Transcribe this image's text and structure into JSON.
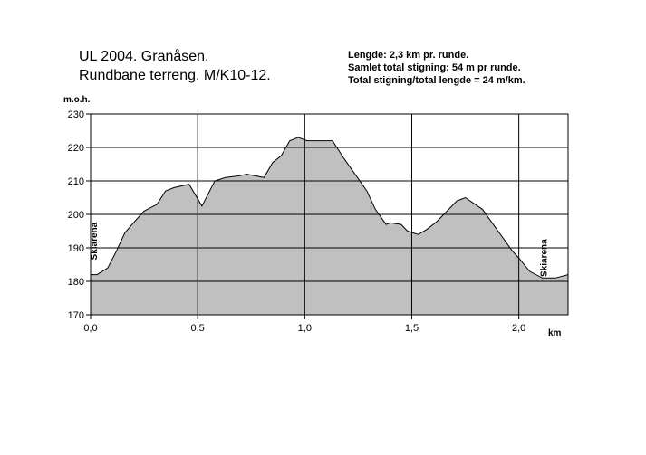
{
  "header": {
    "title_line1": "UL 2004. Granåsen.",
    "title_line2": "Rundbane terreng. M/K10-12.",
    "info_line1": "Lengde: 2,3 km pr. runde.",
    "info_line2": "Samlet total stigning: 54 m  pr runde.",
    "info_line3": "Total stigning/total lengde = 24 m/km."
  },
  "chart_data": {
    "type": "area",
    "title": "UL 2004. Granåsen.",
    "subtitle": "Rundbane terreng. M/K10-12.",
    "xlabel": "km",
    "ylabel": "m.o.h.",
    "xlim": [
      0,
      2.23
    ],
    "ylim": [
      170,
      230
    ],
    "xticks": [
      0,
      0.5,
      1.0,
      1.5,
      2.0
    ],
    "xtick_labels": [
      "0,0",
      "0,5",
      "1,0",
      "1,5",
      "2,0"
    ],
    "yticks": [
      170,
      180,
      190,
      200,
      210,
      220,
      230
    ],
    "ytick_labels": [
      "170",
      "180",
      "190",
      "200",
      "210",
      "220",
      "230"
    ],
    "grid": true,
    "fill_color": "#c0c0c0",
    "x": [
      0,
      0.03,
      0.08,
      0.12,
      0.16,
      0.2,
      0.25,
      0.31,
      0.35,
      0.39,
      0.46,
      0.52,
      0.58,
      0.63,
      0.69,
      0.73,
      0.81,
      0.85,
      0.89,
      0.93,
      0.97,
      1.01,
      1.13,
      1.18,
      1.29,
      1.33,
      1.38,
      1.4,
      1.45,
      1.48,
      1.53,
      1.57,
      1.62,
      1.71,
      1.75,
      1.83,
      1.97,
      2.0,
      2.05,
      2.11,
      2.17,
      2.23
    ],
    "values": [
      182,
      182,
      184,
      189,
      194.5,
      197.5,
      201,
      203,
      207,
      208,
      209,
      202.5,
      210,
      211,
      211.5,
      212,
      211,
      215.5,
      217.5,
      222,
      223,
      222,
      222,
      217,
      207,
      201.5,
      197,
      197.5,
      197,
      195,
      194,
      195.5,
      198,
      204,
      205,
      201.5,
      189,
      187,
      183,
      181,
      181,
      182
    ],
    "annotations": [
      {
        "text": "Skiarena",
        "x": 0.03,
        "y": 192
      },
      {
        "text": "Skiarena",
        "x": 2.13,
        "y": 187
      }
    ]
  }
}
